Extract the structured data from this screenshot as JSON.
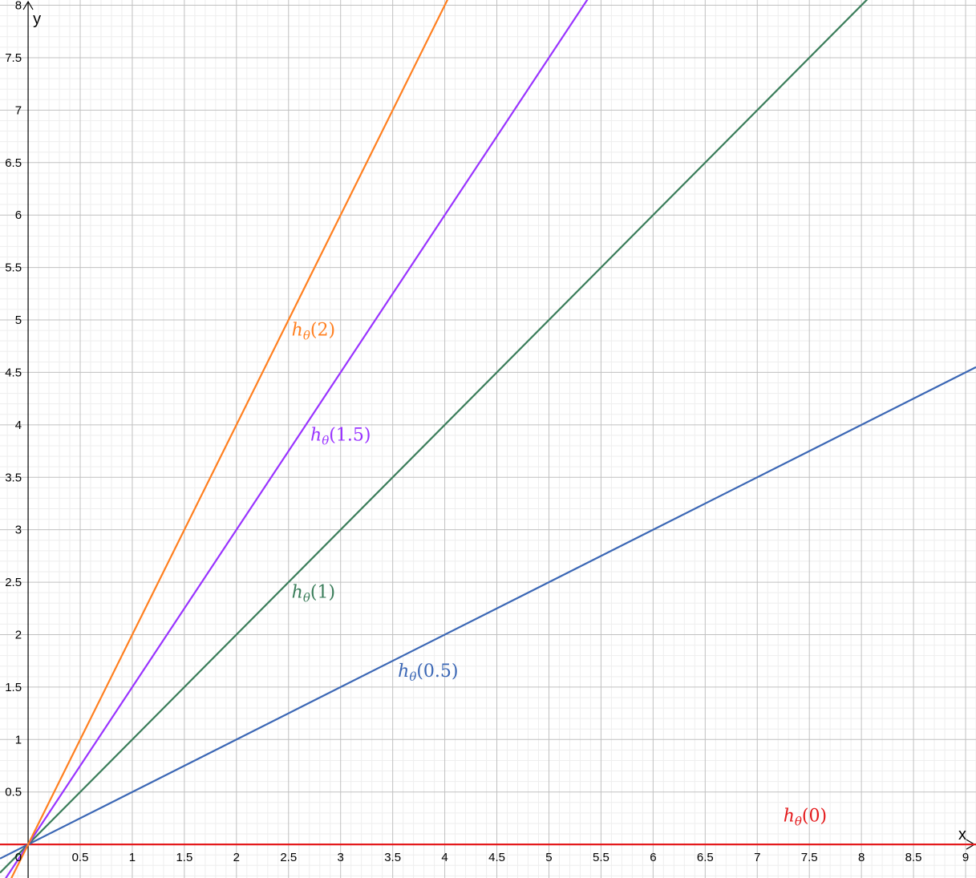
{
  "chart_data": {
    "type": "line",
    "xlabel": "x",
    "ylabel": "y",
    "xlim": [
      -0.27,
      9.1
    ],
    "ylim": [
      -0.32,
      8.05
    ],
    "grid": true,
    "x_ticks": [
      "0.5",
      "1",
      "1.5",
      "2",
      "2.5",
      "3",
      "3.5",
      "4",
      "4.5",
      "5",
      "5.5",
      "6",
      "6.5",
      "7",
      "7.5",
      "8",
      "8.5",
      "9"
    ],
    "y_ticks": [
      "0.5",
      "1",
      "1.5",
      "2",
      "2.5",
      "3",
      "3.5",
      "4",
      "4.5",
      "5",
      "5.5",
      "6",
      "6.5",
      "7",
      "7.5",
      "8"
    ],
    "origin_label": "0",
    "series": [
      {
        "name": "hθ(0)",
        "label_main": "h",
        "label_sub": "θ",
        "label_arg": "(0)",
        "slope": 0,
        "color": "#e41a1c",
        "label_at": [
          7.25,
          0.22
        ]
      },
      {
        "name": "hθ(0.5)",
        "label_main": "h",
        "label_sub": "θ",
        "label_arg": "(0.5)",
        "slope": 0.5,
        "color": "#3b67b5",
        "label_at": [
          3.55,
          1.6
        ]
      },
      {
        "name": "hθ(1)",
        "label_main": "h",
        "label_sub": "θ",
        "label_arg": "(1)",
        "slope": 1,
        "color": "#3a7d5a",
        "label_at": [
          2.53,
          2.35
        ]
      },
      {
        "name": "hθ(1.5)",
        "label_main": "h",
        "label_sub": "θ",
        "label_arg": "(1.5)",
        "slope": 1.5,
        "color": "#9933ff",
        "label_at": [
          2.71,
          3.85
        ]
      },
      {
        "name": "hθ(2)",
        "label_main": "h",
        "label_sub": "θ",
        "label_arg": "(2)",
        "slope": 2,
        "color": "#ff7f1f",
        "label_at": [
          2.53,
          4.85
        ]
      }
    ]
  }
}
